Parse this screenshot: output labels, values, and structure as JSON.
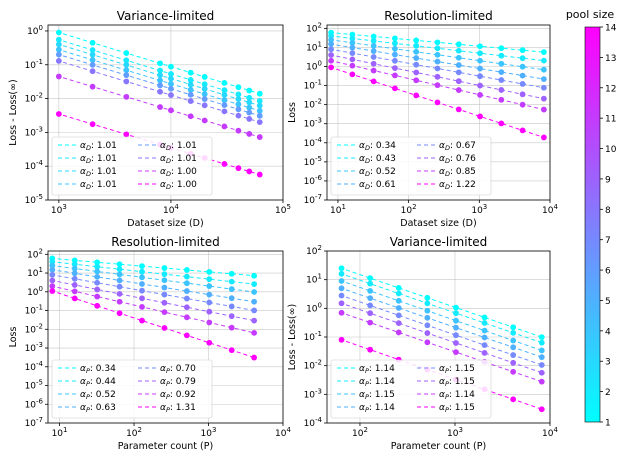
{
  "colorbar": {
    "title": "pool size",
    "min": 1,
    "max": 14,
    "ticks": [
      "1",
      "2",
      "3",
      "4",
      "5",
      "6",
      "7",
      "8",
      "9",
      "10",
      "11",
      "12",
      "13",
      "14"
    ],
    "color_low": "#00ffff",
    "color_high": "#ff00ff"
  },
  "chart_data": [
    {
      "type": "scatter",
      "title": "Variance-limited",
      "xlabel": "Dataset size (D)",
      "ylabel": "Loss - Loss(∞)",
      "xscale": "log",
      "yscale": "log",
      "xlim": [
        800,
        100000
      ],
      "ylim": [
        1e-05,
        1.5
      ],
      "xticks": [
        {
          "value": 1000,
          "label": "10",
          "exp": "3"
        },
        {
          "value": 10000,
          "label": "10",
          "exp": "4"
        },
        {
          "value": 100000,
          "label": "10",
          "exp": "5"
        }
      ],
      "yticks": [
        {
          "value": 1,
          "label": "10",
          "exp": "0"
        },
        {
          "value": 0.1,
          "label": "10",
          "exp": "-1"
        },
        {
          "value": 0.01,
          "label": "10",
          "exp": "-2"
        },
        {
          "value": 0.001,
          "label": "10",
          "exp": "-3"
        },
        {
          "value": 0.0001,
          "label": "10",
          "exp": "-4"
        },
        {
          "value": 1e-05,
          "label": "10",
          "exp": "-5"
        }
      ],
      "grid": true,
      "legend_position": "lower-left",
      "legend_prefix": "α",
      "legend_sub": "D",
      "x": [
        1000,
        2000,
        4000,
        8000,
        10000,
        15000,
        20000,
        30000,
        40000,
        50000,
        62000
      ],
      "series": [
        {
          "pool": 1,
          "exponent": 1.01,
          "label": "1.01",
          "y0": 0.9
        },
        {
          "pool": 2,
          "exponent": 1.01,
          "label": "1.01",
          "y0": 0.55
        },
        {
          "pool": 3,
          "exponent": 1.01,
          "label": "1.01",
          "y0": 0.4
        },
        {
          "pool": 4,
          "exponent": 1.01,
          "label": "1.01",
          "y0": 0.28
        },
        {
          "pool": 6,
          "exponent": 1.01,
          "label": "1.01",
          "y0": 0.2
        },
        {
          "pool": 8,
          "exponent": 1.01,
          "label": "1.01",
          "y0": 0.13
        },
        {
          "pool": 11,
          "exponent": 1.0,
          "label": "1.00",
          "y0": 0.045
        },
        {
          "pool": 14,
          "exponent": 1.0,
          "label": "1.00",
          "y0": 0.0035
        }
      ]
    },
    {
      "type": "scatter",
      "title": "Resolution-limited",
      "xlabel": "Dataset size (D)",
      "ylabel": "Loss",
      "xscale": "log",
      "yscale": "log",
      "xlim": [
        7,
        10000
      ],
      "ylim": [
        1e-07,
        150
      ],
      "xticks": [
        {
          "value": 10,
          "label": "10",
          "exp": "1"
        },
        {
          "value": 100,
          "label": "10",
          "exp": "2"
        },
        {
          "value": 1000,
          "label": "10",
          "exp": "3"
        },
        {
          "value": 10000,
          "label": "10",
          "exp": "4"
        }
      ],
      "yticks": [
        {
          "value": 100,
          "label": "10",
          "exp": "2"
        },
        {
          "value": 10,
          "label": "10",
          "exp": "1"
        },
        {
          "value": 1,
          "label": "10",
          "exp": "0"
        },
        {
          "value": 0.1,
          "label": "10",
          "exp": "-1"
        },
        {
          "value": 0.01,
          "label": "10",
          "exp": "-2"
        },
        {
          "value": 0.001,
          "label": "10",
          "exp": "-3"
        },
        {
          "value": 0.0001,
          "label": "10",
          "exp": "-4"
        },
        {
          "value": 1e-05,
          "label": "10",
          "exp": "-5"
        },
        {
          "value": 1e-06,
          "label": "10",
          "exp": "-6"
        },
        {
          "value": 1e-07,
          "label": "10",
          "exp": "-7"
        }
      ],
      "grid": true,
      "legend_position": "lower-left",
      "legend_prefix": "α",
      "legend_sub": "D",
      "x": [
        8,
        16,
        32,
        64,
        128,
        256,
        512,
        1024,
        2048,
        4096,
        8192
      ],
      "series": [
        {
          "pool": 1,
          "exponent": 0.34,
          "label": "0.34",
          "y0": 60
        },
        {
          "pool": 2,
          "exponent": 0.43,
          "label": "0.43",
          "y0": 40
        },
        {
          "pool": 4,
          "exponent": 0.52,
          "label": "0.52",
          "y0": 25
        },
        {
          "pool": 5,
          "exponent": 0.61,
          "label": "0.61",
          "y0": 15
        },
        {
          "pool": 7,
          "exponent": 0.67,
          "label": "0.67",
          "y0": 8
        },
        {
          "pool": 9,
          "exponent": 0.76,
          "label": "0.76",
          "y0": 4
        },
        {
          "pool": 11,
          "exponent": 0.85,
          "label": "0.85",
          "y0": 2
        },
        {
          "pool": 14,
          "exponent": 1.22,
          "label": "1.22",
          "y0": 0.9
        }
      ]
    },
    {
      "type": "scatter",
      "title": "Resolution-limited",
      "xlabel": "Parameter count (P)",
      "ylabel": "Loss",
      "xscale": "log",
      "yscale": "log",
      "xlim": [
        7,
        10000
      ],
      "ylim": [
        1e-07,
        150
      ],
      "xticks": [
        {
          "value": 10,
          "label": "10",
          "exp": "1"
        },
        {
          "value": 100,
          "label": "10",
          "exp": "2"
        },
        {
          "value": 1000,
          "label": "10",
          "exp": "3"
        },
        {
          "value": 10000,
          "label": "10",
          "exp": "4"
        }
      ],
      "yticks": [
        {
          "value": 100,
          "label": "10",
          "exp": "2"
        },
        {
          "value": 10,
          "label": "10",
          "exp": "1"
        },
        {
          "value": 1,
          "label": "10",
          "exp": "0"
        },
        {
          "value": 0.1,
          "label": "10",
          "exp": "-1"
        },
        {
          "value": 0.01,
          "label": "10",
          "exp": "-2"
        },
        {
          "value": 0.001,
          "label": "10",
          "exp": "-3"
        },
        {
          "value": 0.0001,
          "label": "10",
          "exp": "-4"
        },
        {
          "value": 1e-05,
          "label": "10",
          "exp": "-5"
        },
        {
          "value": 1e-06,
          "label": "10",
          "exp": "-6"
        },
        {
          "value": 1e-07,
          "label": "10",
          "exp": "-7"
        }
      ],
      "grid": true,
      "legend_position": "lower-left",
      "legend_prefix": "α",
      "legend_sub": "P",
      "x": [
        8,
        16,
        32,
        64,
        128,
        256,
        512,
        1024,
        2048,
        4096
      ],
      "series": [
        {
          "pool": 1,
          "exponent": 0.34,
          "label": "0.34",
          "y0": 60
        },
        {
          "pool": 2,
          "exponent": 0.44,
          "label": "0.44",
          "y0": 40
        },
        {
          "pool": 4,
          "exponent": 0.52,
          "label": "0.52",
          "y0": 25
        },
        {
          "pool": 5,
          "exponent": 0.63,
          "label": "0.63",
          "y0": 15
        },
        {
          "pool": 7,
          "exponent": 0.7,
          "label": "0.70",
          "y0": 8
        },
        {
          "pool": 9,
          "exponent": 0.79,
          "label": "0.79",
          "y0": 4
        },
        {
          "pool": 11,
          "exponent": 0.92,
          "label": "0.92",
          "y0": 2
        },
        {
          "pool": 14,
          "exponent": 1.31,
          "label": "1.31",
          "y0": 1.1
        }
      ]
    },
    {
      "type": "scatter",
      "title": "Variance-limited",
      "xlabel": "Parameter count (P)",
      "ylabel": "Loss - Loss(∞)",
      "xscale": "log",
      "yscale": "log",
      "xlim": [
        45,
        10000
      ],
      "ylim": [
        0.0001,
        100
      ],
      "xticks": [
        {
          "value": 100,
          "label": "10",
          "exp": "2"
        },
        {
          "value": 1000,
          "label": "10",
          "exp": "3"
        },
        {
          "value": 10000,
          "label": "10",
          "exp": "4"
        }
      ],
      "yticks": [
        {
          "value": 100,
          "label": "10",
          "exp": "2"
        },
        {
          "value": 10,
          "label": "10",
          "exp": "1"
        },
        {
          "value": 1,
          "label": "10",
          "exp": "0"
        },
        {
          "value": 0.1,
          "label": "10",
          "exp": "-1"
        },
        {
          "value": 0.01,
          "label": "10",
          "exp": "-2"
        },
        {
          "value": 0.001,
          "label": "10",
          "exp": "-3"
        },
        {
          "value": 0.0001,
          "label": "10",
          "exp": "-4"
        }
      ],
      "grid": true,
      "legend_position": "lower-left",
      "legend_prefix": "α",
      "legend_sub": "P",
      "x": [
        64,
        128,
        256,
        512,
        1024,
        2048,
        4096,
        8192
      ],
      "series": [
        {
          "pool": 1,
          "exponent": 1.14,
          "label": "1.14",
          "y0": 25
        },
        {
          "pool": 2,
          "exponent": 1.14,
          "label": "1.14",
          "y0": 16
        },
        {
          "pool": 4,
          "exponent": 1.15,
          "label": "1.15",
          "y0": 9
        },
        {
          "pool": 5,
          "exponent": 1.14,
          "label": "1.14",
          "y0": 5
        },
        {
          "pool": 7,
          "exponent": 1.15,
          "label": "1.15",
          "y0": 2.8
        },
        {
          "pool": 9,
          "exponent": 1.15,
          "label": "1.15",
          "y0": 1.5
        },
        {
          "pool": 11,
          "exponent": 1.14,
          "label": "1.14",
          "y0": 0.7
        },
        {
          "pool": 14,
          "exponent": 1.15,
          "label": "1.15",
          "y0": 0.08
        }
      ]
    }
  ]
}
